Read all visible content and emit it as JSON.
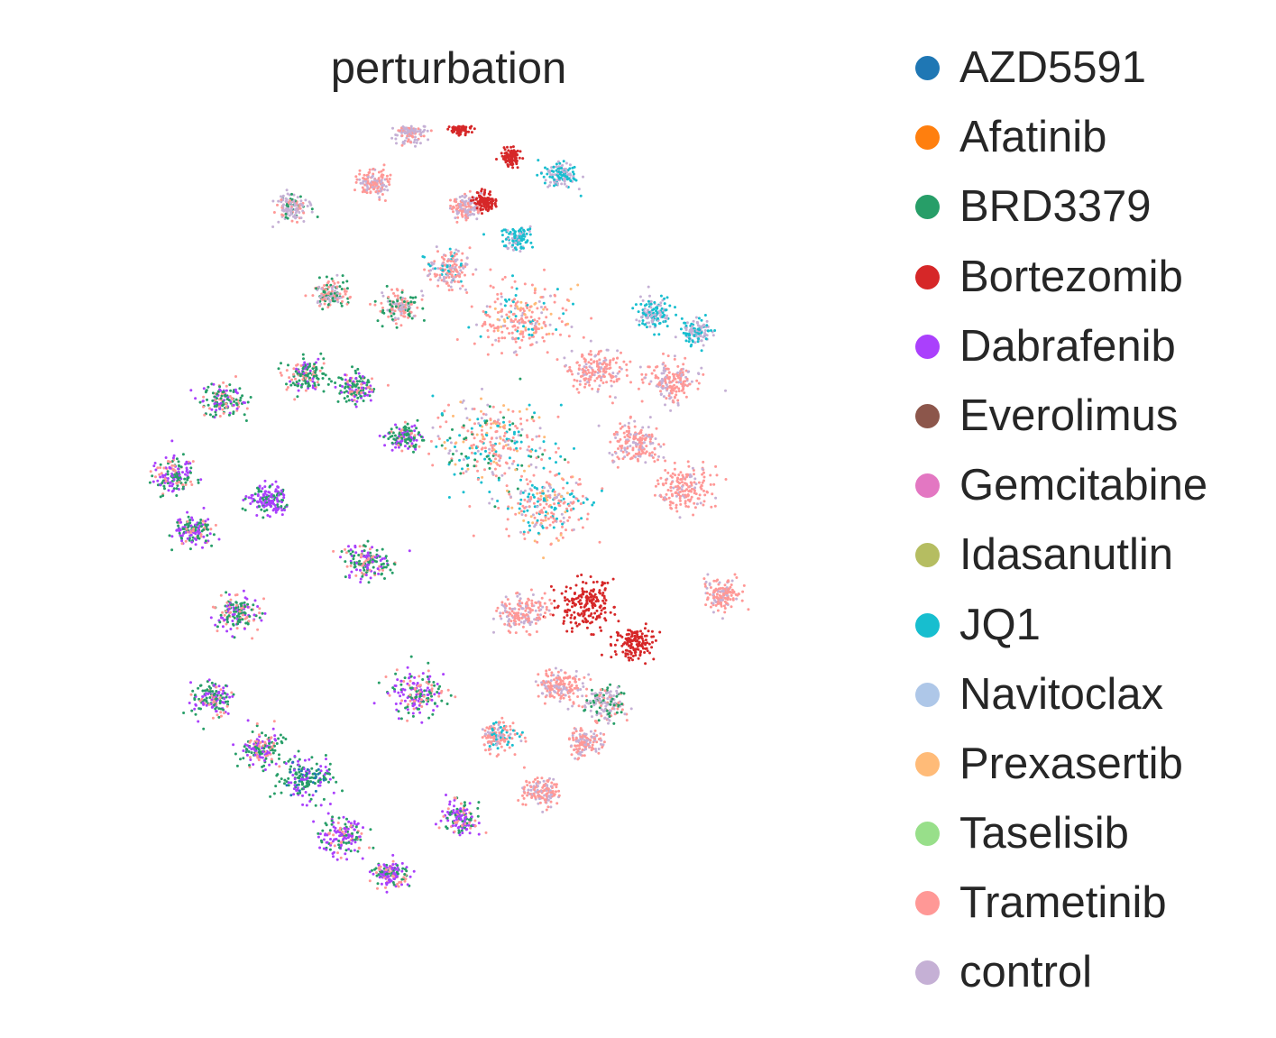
{
  "chart_data": {
    "type": "scatter",
    "title": "perturbation",
    "xlabel": "",
    "ylabel": "",
    "axes_visible": false,
    "grid": false,
    "legend_position": "right",
    "categories": [
      {
        "name": "AZD5591",
        "color": "#1f77b4"
      },
      {
        "name": "Afatinib",
        "color": "#ff7f0e"
      },
      {
        "name": "BRD3379",
        "color": "#279e68"
      },
      {
        "name": "Bortezomib",
        "color": "#d62728"
      },
      {
        "name": "Dabrafenib",
        "color": "#aa40fc"
      },
      {
        "name": "Everolimus",
        "color": "#8c564b"
      },
      {
        "name": "Gemcitabine",
        "color": "#e377c2"
      },
      {
        "name": "Idasanutlin",
        "color": "#b5bd61"
      },
      {
        "name": "JQ1",
        "color": "#17becf"
      },
      {
        "name": "Navitoclax",
        "color": "#aec7e8"
      },
      {
        "name": "Prexasertib",
        "color": "#ffbb78"
      },
      {
        "name": "Taselisib",
        "color": "#98df8a"
      },
      {
        "name": "Trametinib",
        "color": "#ff9896"
      },
      {
        "name": "control",
        "color": "#c5b0d5"
      }
    ],
    "x_range": [
      -50,
      50
    ],
    "y_range": [
      -50,
      50
    ],
    "clusters": [
      {
        "x": -44,
        "y": 7,
        "spread": 1.8,
        "mix": {
          "BRD3379": 0.45,
          "Dabrafenib": 0.35,
          "Trametinib": 0.2
        }
      },
      {
        "x": -36,
        "y": 19,
        "spread": 1.6,
        "mix": {
          "BRD3379": 0.5,
          "Dabrafenib": 0.3,
          "Trametinib": 0.2
        }
      },
      {
        "x": -41,
        "y": -2,
        "spread": 1.5,
        "mix": {
          "BRD3379": 0.45,
          "Dabrafenib": 0.4,
          "Trametinib": 0.15
        }
      },
      {
        "x": -34,
        "y": -15,
        "spread": 1.8,
        "mix": {
          "BRD3379": 0.5,
          "Dabrafenib": 0.3,
          "Trametinib": 0.2
        }
      },
      {
        "x": -29,
        "y": 3,
        "spread": 1.6,
        "mix": {
          "Dabrafenib": 0.7,
          "BRD3379": 0.3
        }
      },
      {
        "x": -38,
        "y": -29,
        "spread": 1.6,
        "mix": {
          "BRD3379": 0.45,
          "Dabrafenib": 0.35,
          "Trametinib": 0.2
        }
      },
      {
        "x": -30,
        "y": -37,
        "spread": 1.7,
        "mix": {
          "BRD3379": 0.5,
          "Dabrafenib": 0.3,
          "Trametinib": 0.2
        }
      },
      {
        "x": -23,
        "y": -42,
        "spread": 2.2,
        "mix": {
          "BRD3379": 0.5,
          "Dabrafenib": 0.4,
          "AZD5591": 0.1
        }
      },
      {
        "x": -17,
        "y": -51,
        "spread": 1.8,
        "mix": {
          "Dabrafenib": 0.45,
          "BRD3379": 0.35,
          "Trametinib": 0.2
        }
      },
      {
        "x": -9,
        "y": -57,
        "spread": 1.4,
        "mix": {
          "Dabrafenib": 0.5,
          "BRD3379": 0.3,
          "Trametinib": 0.2
        }
      },
      {
        "x": -23,
        "y": 23,
        "spread": 1.6,
        "mix": {
          "BRD3379": 0.5,
          "Trametinib": 0.3,
          "Dabrafenib": 0.2
        }
      },
      {
        "x": -15,
        "y": 21,
        "spread": 1.5,
        "mix": {
          "BRD3379": 0.5,
          "Trametinib": 0.3,
          "Dabrafenib": 0.2
        }
      },
      {
        "x": -7,
        "y": 13,
        "spread": 1.3,
        "mix": {
          "BRD3379": 0.55,
          "Dabrafenib": 0.3,
          "Trametinib": 0.15
        }
      },
      {
        "x": -13,
        "y": -7,
        "spread": 1.8,
        "mix": {
          "BRD3379": 0.45,
          "Dabrafenib": 0.3,
          "Trametinib": 0.25
        }
      },
      {
        "x": -5,
        "y": -28,
        "spread": 2.2,
        "mix": {
          "Dabrafenib": 0.4,
          "BRD3379": 0.35,
          "Trametinib": 0.25
        }
      },
      {
        "x": 2,
        "y": -48,
        "spread": 1.5,
        "mix": {
          "Dabrafenib": 0.45,
          "BRD3379": 0.35,
          "Trametinib": 0.2
        }
      },
      {
        "x": -19,
        "y": 36,
        "spread": 1.4,
        "mix": {
          "BRD3379": 0.4,
          "control": 0.3,
          "Trametinib": 0.3
        }
      },
      {
        "x": -8,
        "y": 34,
        "spread": 1.5,
        "mix": {
          "Trametinib": 0.4,
          "control": 0.3,
          "BRD3379": 0.3
        }
      },
      {
        "x": 0,
        "y": 40,
        "spread": 1.8,
        "mix": {
          "Trametinib": 0.5,
          "control": 0.3,
          "JQ1": 0.2
        }
      },
      {
        "x": 3,
        "y": 50,
        "spread": 1.2,
        "mix": {
          "control": 0.5,
          "Trametinib": 0.5
        }
      },
      {
        "x": 6,
        "y": 51,
        "spread": 0.9,
        "mix": {
          "Bortezomib": 1.0
        }
      },
      {
        "x": 11,
        "y": 45,
        "spread": 1.1,
        "mix": {
          "JQ1": 0.6,
          "control": 0.4
        }
      },
      {
        "x": 12,
        "y": 32,
        "spread": 3.5,
        "mix": {
          "Trametinib": 0.6,
          "control": 0.15,
          "JQ1": 0.1,
          "Prexasertib": 0.15
        }
      },
      {
        "x": 7,
        "y": 12,
        "spread": 4.5,
        "mix": {
          "Trametinib": 0.35,
          "JQ1": 0.2,
          "Prexasertib": 0.15,
          "control": 0.15,
          "BRD3379": 0.15
        }
      },
      {
        "x": 16,
        "y": 2,
        "spread": 3.5,
        "mix": {
          "Trametinib": 0.4,
          "JQ1": 0.3,
          "Prexasertib": 0.15,
          "control": 0.15
        }
      },
      {
        "x": 24,
        "y": 24,
        "spread": 2.2,
        "mix": {
          "Trametinib": 0.75,
          "control": 0.25
        }
      },
      {
        "x": 30,
        "y": 12,
        "spread": 2.0,
        "mix": {
          "Trametinib": 0.7,
          "control": 0.3
        }
      },
      {
        "x": 38,
        "y": 5,
        "spread": 2.2,
        "mix": {
          "Trametinib": 0.85,
          "control": 0.15
        }
      },
      {
        "x": 36,
        "y": 22,
        "spread": 2.0,
        "mix": {
          "Trametinib": 0.7,
          "control": 0.3
        }
      },
      {
        "x": 22,
        "y": -14,
        "spread": 2.4,
        "mix": {
          "Bortezomib": 1.0
        }
      },
      {
        "x": 12,
        "y": -15,
        "spread": 2.0,
        "mix": {
          "Trametinib": 0.6,
          "control": 0.4
        }
      },
      {
        "x": 18,
        "y": -27,
        "spread": 1.8,
        "mix": {
          "Trametinib": 0.6,
          "control": 0.4
        }
      },
      {
        "x": 25,
        "y": -30,
        "spread": 1.7,
        "mix": {
          "control": 0.5,
          "BRD3379": 0.25,
          "Trametinib": 0.25
        }
      },
      {
        "x": 30,
        "y": -20,
        "spread": 1.6,
        "mix": {
          "Bortezomib": 1.0
        }
      },
      {
        "x": 44,
        "y": -12,
        "spread": 1.5,
        "mix": {
          "Trametinib": 0.8,
          "control": 0.2
        }
      },
      {
        "x": 8,
        "y": -35,
        "spread": 1.5,
        "mix": {
          "Trametinib": 0.5,
          "control": 0.3,
          "JQ1": 0.2
        }
      },
      {
        "x": 15,
        "y": -44,
        "spread": 1.4,
        "mix": {
          "Trametinib": 0.7,
          "control": 0.3
        }
      },
      {
        "x": 22,
        "y": -36,
        "spread": 1.3,
        "mix": {
          "Trametinib": 0.6,
          "control": 0.4
        }
      },
      {
        "x": 33,
        "y": 33,
        "spread": 1.4,
        "mix": {
          "JQ1": 0.5,
          "control": 0.5
        }
      },
      {
        "x": 40,
        "y": 30,
        "spread": 1.2,
        "mix": {
          "control": 0.5,
          "JQ1": 0.5
        }
      },
      {
        "x": -25,
        "y": 50,
        "spread": 1.4,
        "mix": {
          "control": 0.6,
          "BRD3379": 0.2,
          "Trametinib": 0.2
        }
      },
      {
        "x": -12,
        "y": 54,
        "spread": 1.3,
        "mix": {
          "Trametinib": 0.6,
          "control": 0.4
        }
      },
      {
        "x": 18,
        "y": 55,
        "spread": 1.3,
        "mix": {
          "JQ1": 0.5,
          "control": 0.5
        }
      },
      {
        "x": 10,
        "y": 58,
        "spread": 0.8,
        "mix": {
          "Bortezomib": 1.0
        }
      },
      {
        "x": -6,
        "y": 62,
        "spread": 1.2,
        "mix": {
          "control": 0.6,
          "Trametinib": 0.4
        }
      },
      {
        "x": 2,
        "y": 63,
        "spread": 0.8,
        "mix": {
          "Bortezomib": 1.0
        }
      }
    ]
  }
}
